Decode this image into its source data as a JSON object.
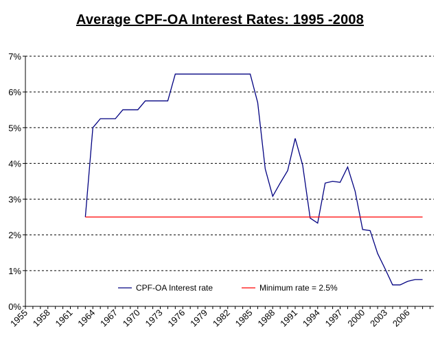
{
  "chart_data": {
    "type": "line",
    "title": "Average CPF-OA Interest Rates: 1995 -2008",
    "xlabel": "",
    "ylabel": "",
    "ylim": [
      0,
      7
    ],
    "xlim": [
      1955,
      2009.5
    ],
    "x_ticks": [
      "1955",
      "1958",
      "1961",
      "1964",
      "1967",
      "1970",
      "1973",
      "1976",
      "1979",
      "1982",
      "1985",
      "1988",
      "1991",
      "1994",
      "1997",
      "2000",
      "2003",
      "2006"
    ],
    "y_ticks": [
      "0%",
      "1%",
      "2%",
      "3%",
      "4%",
      "5%",
      "6%",
      "7%"
    ],
    "grid": "horizontal dashed",
    "legend_position": "bottom-center",
    "series": [
      {
        "name": "CPF-OA Interest rate",
        "color": "#000080",
        "points": [
          [
            1963.0,
            2.5
          ],
          [
            1964.0,
            5.0
          ],
          [
            1965.0,
            5.25
          ],
          [
            1966.0,
            5.25
          ],
          [
            1967.0,
            5.25
          ],
          [
            1968.0,
            5.5
          ],
          [
            1969.0,
            5.5
          ],
          [
            1970.0,
            5.5
          ],
          [
            1971.0,
            5.75
          ],
          [
            1972.0,
            5.75
          ],
          [
            1973.0,
            5.75
          ],
          [
            1974.0,
            5.75
          ],
          [
            1975.0,
            6.5
          ],
          [
            1976.0,
            6.5
          ],
          [
            1977.0,
            6.5
          ],
          [
            1978.0,
            6.5
          ],
          [
            1979.0,
            6.5
          ],
          [
            1980.0,
            6.5
          ],
          [
            1981.0,
            6.5
          ],
          [
            1982.0,
            6.5
          ],
          [
            1983.0,
            6.5
          ],
          [
            1984.0,
            6.5
          ],
          [
            1985.0,
            6.5
          ],
          [
            1986.0,
            5.7
          ],
          [
            1987.0,
            3.85
          ],
          [
            1988.0,
            3.08
          ],
          [
            1989.0,
            3.45
          ],
          [
            1990.0,
            3.8
          ],
          [
            1991.0,
            4.7
          ],
          [
            1992.0,
            3.95
          ],
          [
            1993.0,
            2.47
          ],
          [
            1994.0,
            2.33
          ],
          [
            1995.0,
            3.45
          ],
          [
            1996.0,
            3.5
          ],
          [
            1997.0,
            3.47
          ],
          [
            1998.0,
            3.9
          ],
          [
            1999.0,
            3.22
          ],
          [
            2000.0,
            2.15
          ],
          [
            2001.0,
            2.12
          ],
          [
            2002.0,
            1.48
          ],
          [
            2003.0,
            1.05
          ],
          [
            2004.0,
            0.6
          ],
          [
            2005.0,
            0.6
          ],
          [
            2006.0,
            0.7
          ],
          [
            2007.0,
            0.75
          ],
          [
            2008.0,
            0.75
          ]
        ]
      },
      {
        "name": "Minimum rate = 2.5%",
        "color": "#ff0000",
        "points": [
          [
            1963.0,
            2.5
          ],
          [
            2008.0,
            2.5
          ]
        ]
      }
    ]
  }
}
